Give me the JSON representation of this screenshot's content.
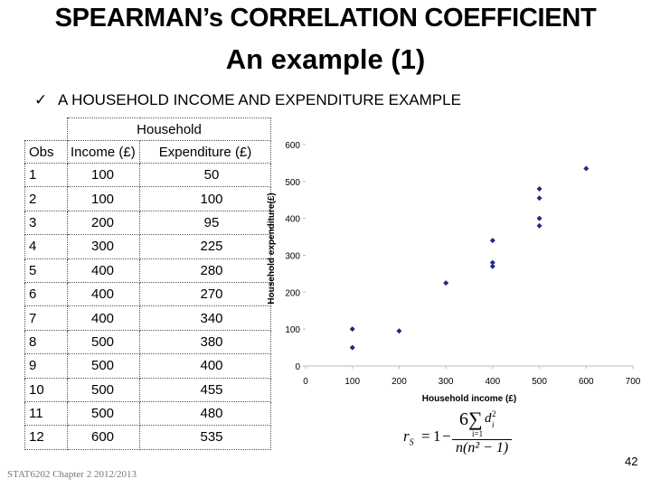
{
  "slide": {
    "title_line1": "SPEARMAN’s CORRELATION COEFFICIENT",
    "title_line2": "An example (1)",
    "bullet_mark": "✓",
    "bullet_text": "A HOUSEHOLD INCOME AND EXPENDITURE EXAMPLE",
    "page_number": "42",
    "footer": "STAT6202 Chapter 2 2012/2013"
  },
  "table": {
    "group_header": "Household",
    "headers": [
      "Obs",
      "Income (£)",
      "Expenditure (£)"
    ],
    "rows": [
      [
        "1",
        "100",
        "50"
      ],
      [
        "2",
        "100",
        "100"
      ],
      [
        "3",
        "200",
        "95"
      ],
      [
        "4",
        "300",
        "225"
      ],
      [
        "5",
        "400",
        "280"
      ],
      [
        "6",
        "400",
        "270"
      ],
      [
        "7",
        "400",
        "340"
      ],
      [
        "8",
        "500",
        "380"
      ],
      [
        "9",
        "500",
        "400"
      ],
      [
        "10",
        "500",
        "455"
      ],
      [
        "11",
        "500",
        "480"
      ],
      [
        "12",
        "600",
        "535"
      ]
    ]
  },
  "chart_data": {
    "type": "scatter",
    "xlabel": "Household income (£)",
    "ylabel": "Household expenditure(£)",
    "xlim": [
      0,
      700
    ],
    "ylim": [
      0,
      600
    ],
    "xticks": [
      0,
      100,
      200,
      300,
      400,
      500,
      600,
      700
    ],
    "yticks": [
      0,
      100,
      200,
      300,
      400,
      500,
      600
    ],
    "grid": false,
    "marker_color": "#1f2a8a",
    "x": [
      100,
      100,
      200,
      300,
      400,
      400,
      400,
      500,
      500,
      500,
      500,
      600
    ],
    "y": [
      50,
      100,
      95,
      225,
      280,
      270,
      340,
      380,
      400,
      455,
      480,
      535
    ]
  },
  "formula": {
    "lhs": "r",
    "lhs_sub": "S",
    "equals": "=",
    "one": "1",
    "minus": "−",
    "num_coef": "6",
    "sigma": "∑",
    "d": "d",
    "d_sup": "2",
    "d_sub": "i",
    "lim": "i=1",
    "denominator": "n(n² − 1)"
  }
}
